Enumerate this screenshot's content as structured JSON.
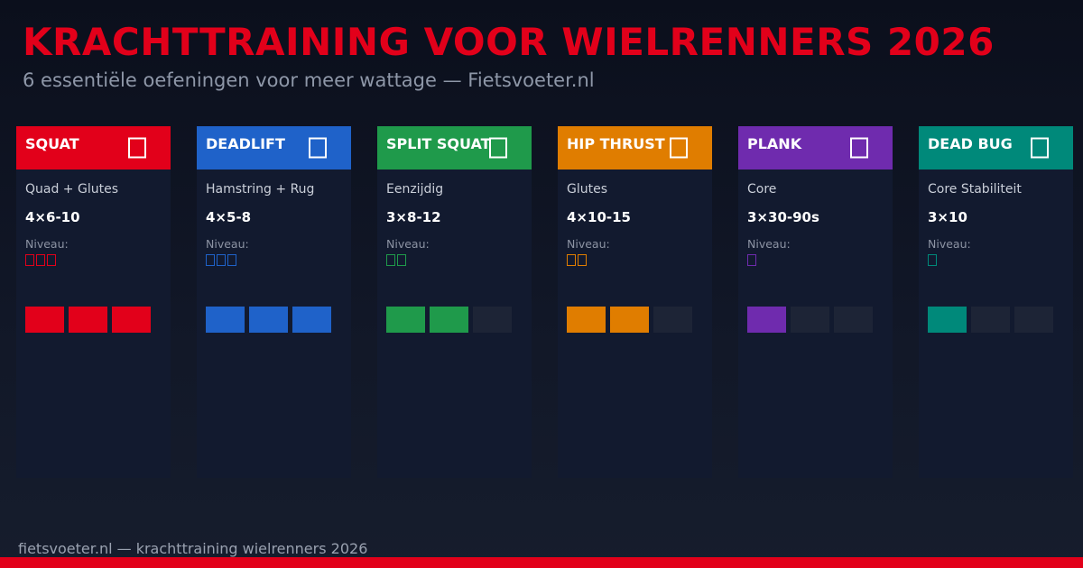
{
  "header": {
    "title": "KRACHTTRAINING VOOR WIELRENNERS 2026",
    "subtitle": "6 essentiële oefeningen voor meer wattage — Fietsvoeter.nl"
  },
  "level_label": "Niveau:",
  "empty_bar_color": "#1d2436",
  "exercises": [
    {
      "name": "SQUAT",
      "muscle": "Quad + Glutes",
      "sets": "4×6-10",
      "color": "#e2001a",
      "icon": "dumbbell-icon",
      "level": 3,
      "level_max": 3
    },
    {
      "name": "DEADLIFT",
      "muscle": "Hamstring + Rug",
      "sets": "4×5-8",
      "color": "#1f62c9",
      "icon": "dumbbell-icon",
      "level": 3,
      "level_max": 3
    },
    {
      "name": "SPLIT SQUAT",
      "muscle": "Eenzijdig",
      "sets": "3×8-12",
      "color": "#1f9a4b",
      "icon": "dumbbell-icon",
      "level": 2,
      "level_max": 3
    },
    {
      "name": "HIP THRUST",
      "muscle": "Glutes",
      "sets": "4×10-15",
      "color": "#e07d00",
      "icon": "dumbbell-icon",
      "level": 2,
      "level_max": 3
    },
    {
      "name": "PLANK",
      "muscle": "Core",
      "sets": "3×30-90s",
      "color": "#6f2bae",
      "icon": "dumbbell-icon",
      "level": 1,
      "level_max": 3
    },
    {
      "name": "DEAD BUG",
      "muscle": "Core Stabiliteit",
      "sets": "3×10",
      "color": "#00897a",
      "icon": "dumbbell-icon",
      "level": 1,
      "level_max": 3
    }
  ],
  "footer": {
    "text": "fietsvoeter.nl — krachttraining wielrenners 2026",
    "accent_color": "#e2001a"
  }
}
